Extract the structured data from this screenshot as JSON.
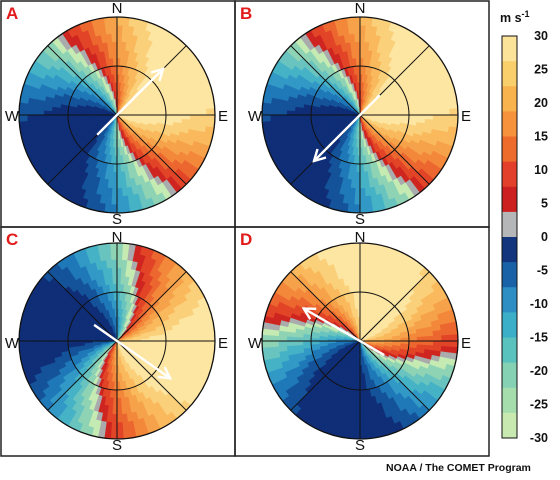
{
  "panels": [
    {
      "letter": "A",
      "north": "N",
      "south": "S",
      "east": "E",
      "west": "W",
      "rotation": 0,
      "flow_heading_deg": 45
    },
    {
      "letter": "B",
      "north": "N",
      "south": "S",
      "east": "E",
      "west": "W",
      "rotation": 0,
      "flow_heading_deg": 225
    },
    {
      "letter": "C",
      "north": "N",
      "south": "S",
      "east": "E",
      "west": "W",
      "rotation": 45,
      "flow_heading_deg": 125
    },
    {
      "letter": "D",
      "north": "N",
      "south": "S",
      "east": "E",
      "west": "W",
      "rotation": -45,
      "flow_heading_deg": 300
    }
  ],
  "colorbar": {
    "unit_base": "m s",
    "unit_exp": "-1",
    "levels": [
      30,
      25,
      20,
      15,
      10,
      5,
      0,
      -5,
      -10,
      -15,
      -20,
      -25,
      -30
    ],
    "tick_labels": [
      "30",
      "25",
      "20",
      "15",
      "10",
      "5",
      "0",
      "-5",
      "-10",
      "-15",
      "-20",
      "-25",
      "-30"
    ],
    "colors": [
      "#fbe49a",
      "#f9cf6c",
      "#f8b24e",
      "#f5923b",
      "#ee6c2b",
      "#e2402a",
      "#cc1f20",
      "#b4b6b8",
      "#12357e",
      "#1a62a8",
      "#2c8ec3",
      "#3cafc8",
      "#59c1be",
      "#84d1b4",
      "#a5ddad",
      "#c8eab0"
    ],
    "palette": {
      "positive": [
        "#fde5a2",
        "#fbd07a",
        "#f9b95c",
        "#f6a24a",
        "#f3883b",
        "#ec672f",
        "#e24427",
        "#cf2521"
      ],
      "zero": "#a9abad",
      "negative": [
        "#0f2e77",
        "#145399",
        "#1f78b8",
        "#3299c6",
        "#46b2c6",
        "#69c4bf",
        "#8fd3b5",
        "#c5ebb3"
      ]
    }
  },
  "credit": "NOAA / The COMET Program"
}
